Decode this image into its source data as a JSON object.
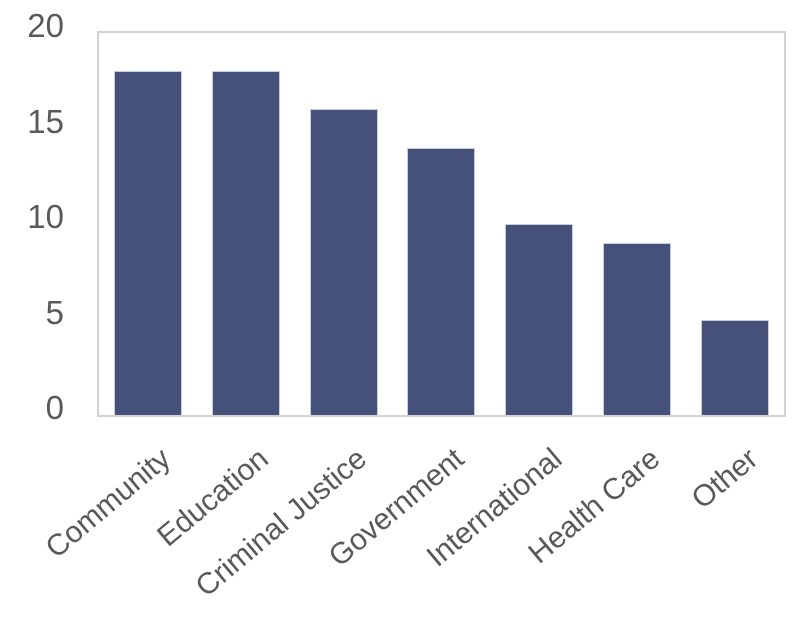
{
  "chart_data": {
    "type": "bar",
    "title": "",
    "xlabel": "",
    "ylabel": "",
    "categories": [
      "Community",
      "Education",
      "Criminal Justice",
      "Government",
      "International",
      "Health Care",
      "Other"
    ],
    "values": [
      18,
      18,
      16,
      14,
      10,
      9,
      5
    ],
    "ylim": [
      0,
      20
    ],
    "yticks": [
      0,
      5,
      10,
      15,
      20
    ],
    "grid": false,
    "legend": false,
    "x_tick_rotation_deg": 40,
    "colors": {
      "bar_fill": "#46517a",
      "bar_edge": "#c7cddb",
      "plot_border": "#d3d3d3",
      "tick_label": "#595959",
      "background": "#ffffff"
    }
  }
}
